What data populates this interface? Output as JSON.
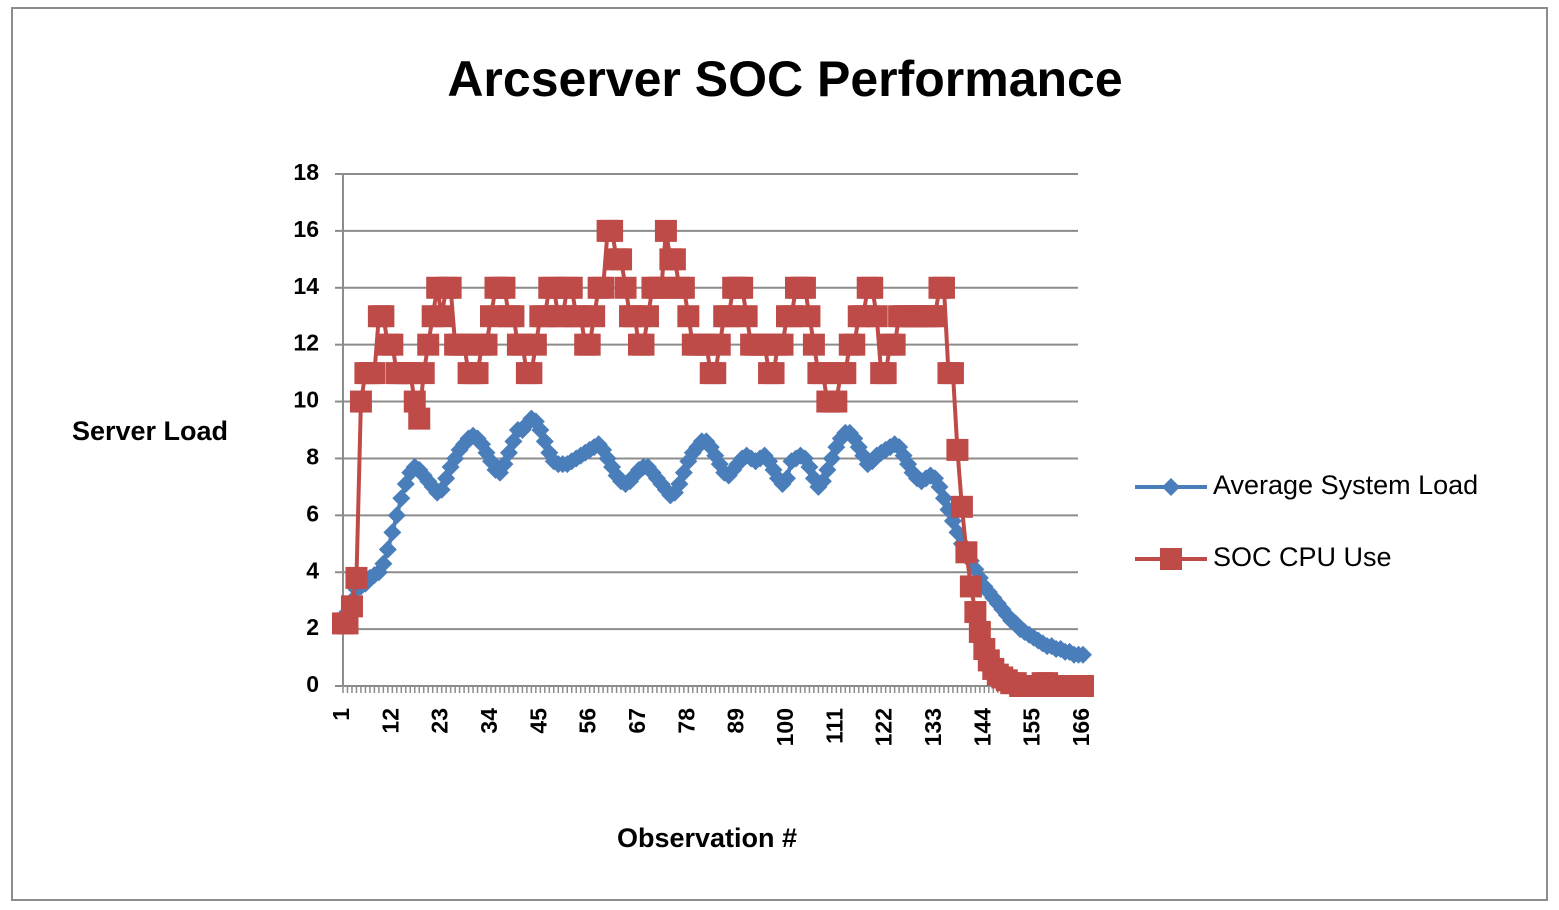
{
  "chart_data": {
    "type": "line",
    "title": "Arcserver SOC Performance",
    "y_label": "Server Load",
    "x_label": "Observation #",
    "categories": [
      "1",
      null,
      null,
      null,
      null,
      null,
      null,
      null,
      null,
      null,
      null,
      "12",
      null,
      null,
      null,
      null,
      null,
      null,
      null,
      null,
      null,
      null,
      "23",
      null,
      null,
      null,
      null,
      null,
      null,
      null,
      null,
      null,
      null,
      "34",
      null,
      null,
      null,
      null,
      null,
      null,
      null,
      null,
      null,
      null,
      "45",
      null,
      null,
      null,
      null,
      null,
      null,
      null,
      null,
      null,
      null,
      "56",
      null,
      null,
      null,
      null,
      null,
      null,
      null,
      null,
      null,
      null,
      "67",
      null,
      null,
      null,
      null,
      null,
      null,
      null,
      null,
      null,
      null,
      "78",
      null,
      null,
      null,
      null,
      null,
      null,
      null,
      null,
      null,
      null,
      "89",
      null,
      null,
      null,
      null,
      null,
      null,
      null,
      null,
      null,
      null,
      "100",
      null,
      null,
      null,
      null,
      null,
      null,
      null,
      null,
      null,
      null,
      "111",
      null,
      null,
      null,
      null,
      null,
      null,
      null,
      null,
      null,
      null,
      "122",
      null,
      null,
      null,
      null,
      null,
      null,
      null,
      null,
      null,
      null,
      "133",
      null,
      null,
      null,
      null,
      null,
      null,
      null,
      null,
      null,
      null,
      "144",
      null,
      null,
      null,
      null,
      null,
      null,
      null,
      null,
      null,
      null,
      "155",
      null,
      null,
      null,
      null,
      null,
      null,
      null,
      null,
      null,
      null,
      "166"
    ],
    "series": [
      {
        "name": "Average System Load",
        "color": "#4a7ebb",
        "marker": "diamond",
        "values": [
          2.3,
          2.6,
          3.0,
          3.4,
          3.5,
          3.6,
          3.8,
          3.9,
          4.0,
          4.3,
          4.8,
          5.4,
          6.0,
          6.6,
          7.1,
          7.5,
          7.7,
          7.6,
          7.4,
          7.2,
          7.0,
          6.8,
          6.9,
          7.3,
          7.7,
          8.0,
          8.3,
          8.5,
          8.7,
          8.8,
          8.7,
          8.5,
          8.2,
          7.9,
          7.6,
          7.5,
          7.8,
          8.2,
          8.6,
          9.0,
          9.0,
          9.2,
          9.4,
          9.3,
          9.0,
          8.6,
          8.2,
          7.9,
          7.8,
          7.8,
          7.8,
          7.9,
          8.0,
          8.1,
          8.2,
          8.3,
          8.4,
          8.5,
          8.3,
          8.0,
          7.7,
          7.4,
          7.2,
          7.1,
          7.2,
          7.4,
          7.6,
          7.7,
          7.7,
          7.5,
          7.3,
          7.1,
          6.9,
          6.7,
          6.8,
          7.1,
          7.5,
          7.9,
          8.2,
          8.4,
          8.6,
          8.6,
          8.4,
          8.1,
          7.8,
          7.5,
          7.4,
          7.6,
          7.8,
          8.0,
          8.1,
          8.0,
          7.9,
          8.0,
          8.1,
          7.9,
          7.6,
          7.3,
          7.1,
          7.3,
          7.9,
          8.0,
          8.1,
          8.0,
          7.7,
          7.3,
          7.0,
          7.2,
          7.6,
          8.0,
          8.4,
          8.7,
          8.9,
          8.9,
          8.7,
          8.4,
          8.1,
          7.8,
          7.9,
          8.1,
          8.2,
          8.3,
          8.4,
          8.5,
          8.4,
          8.1,
          7.8,
          7.5,
          7.3,
          7.2,
          7.3,
          7.4,
          7.3,
          7.0,
          6.6,
          6.2,
          5.8,
          5.4,
          5.0,
          4.7,
          4.4,
          4.1,
          3.8,
          3.5,
          3.3,
          3.1,
          2.9,
          2.7,
          2.5,
          2.3,
          2.2,
          2.0,
          1.9,
          1.8,
          1.7,
          1.6,
          1.5,
          1.4,
          1.4,
          1.3,
          1.3,
          1.2,
          1.2,
          1.1,
          1.1,
          1.1
        ]
      },
      {
        "name": "SOC CPU Use",
        "color": "#be4b48",
        "marker": "square",
        "values": [
          2.2,
          2.2,
          2.8,
          3.8,
          10,
          11,
          11,
          11,
          13,
          13,
          12,
          12,
          11,
          11,
          11,
          11,
          10,
          9.4,
          11,
          12,
          13,
          14,
          13,
          14,
          14,
          12,
          12,
          12,
          11,
          11,
          11,
          12,
          12,
          13,
          14,
          14,
          14,
          13,
          13,
          12,
          12,
          11,
          11,
          12,
          13,
          13,
          14,
          14,
          13,
          13,
          14,
          14,
          13,
          13,
          12,
          12,
          13,
          14,
          14,
          16,
          16,
          15,
          15,
          14,
          13,
          13,
          12,
          12,
          13,
          14,
          14,
          14,
          16,
          15,
          15,
          14,
          14,
          13,
          12,
          12,
          12,
          12,
          11,
          11,
          12,
          13,
          13,
          14,
          14,
          14,
          13,
          12,
          12,
          12,
          12,
          11,
          11,
          12,
          12,
          13,
          13,
          14,
          14,
          14,
          13,
          12,
          11,
          11,
          10,
          10,
          10,
          11,
          11,
          12,
          12,
          13,
          13,
          14,
          14,
          13,
          11,
          11,
          12,
          12,
          13,
          13,
          13,
          13,
          13,
          13,
          13,
          13,
          13,
          14,
          14,
          11,
          11,
          8.3,
          6.3,
          4.7,
          3.5,
          2.6,
          1.9,
          1.3,
          0.9,
          0.6,
          0.4,
          0.3,
          0.2,
          0.1,
          0.1,
          0,
          0,
          0,
          0,
          0,
          0.1,
          0.1,
          0,
          0,
          0,
          0,
          0,
          0,
          0,
          0
        ]
      }
    ],
    "ylim": [
      0,
      18
    ],
    "yticks": [
      0,
      2,
      4,
      6,
      8,
      10,
      12,
      14,
      16,
      18
    ],
    "grid": true,
    "legend": "right"
  }
}
